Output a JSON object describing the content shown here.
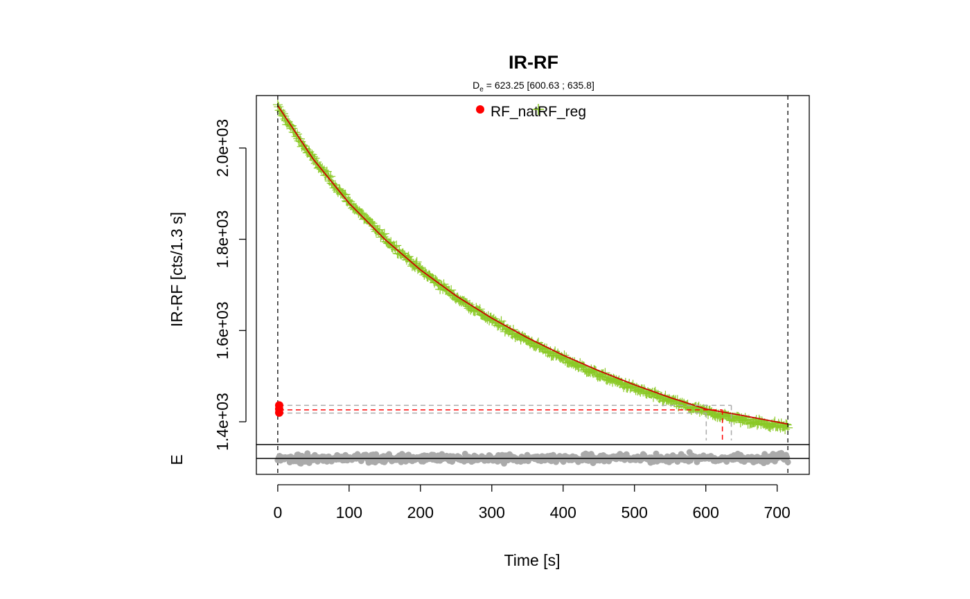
{
  "chart_data": {
    "type": "scatter",
    "title": "IR-RF",
    "subtitle": {
      "symbol": "D",
      "subscript": "e",
      "text": " = 623.25 [600.63 ; 635.8]"
    },
    "xlabel": "Time [s]",
    "ylabel": "IR-RF [cts/1.3 s]",
    "residual_ylabel": "E",
    "xlim": [
      -30,
      745
    ],
    "ylim": [
      1350,
      2115
    ],
    "x_ticks": [
      0,
      100,
      200,
      300,
      400,
      500,
      600,
      700
    ],
    "x_tick_labels": [
      "0",
      "100",
      "200",
      "300",
      "400",
      "500",
      "600",
      "700"
    ],
    "y_ticks": [
      1400,
      1600,
      1800,
      2000
    ],
    "y_tick_labels": [
      "1.4e+03",
      "1.6e+03",
      "1.8e+03",
      "2.0e+03"
    ],
    "legend": {
      "position": "top-center",
      "entries": [
        {
          "label": "RF_nat",
          "marker": "filled-circle",
          "color": "#ff0000"
        },
        {
          "label": "RF_reg",
          "marker": "plus",
          "color": "#8ac926"
        }
      ]
    },
    "series": [
      {
        "name": "RF_reg",
        "marker": "plus",
        "color": "#8ac926",
        "points": [
          [
            0,
            2090
          ],
          [
            25,
            2030
          ],
          [
            50,
            1975
          ],
          [
            75,
            1928
          ],
          [
            100,
            1882
          ],
          [
            125,
            1842
          ],
          [
            150,
            1802
          ],
          [
            175,
            1768
          ],
          [
            200,
            1733
          ],
          [
            225,
            1703
          ],
          [
            250,
            1673
          ],
          [
            275,
            1648
          ],
          [
            300,
            1622
          ],
          [
            325,
            1600
          ],
          [
            350,
            1578
          ],
          [
            375,
            1558
          ],
          [
            400,
            1538
          ],
          [
            425,
            1521
          ],
          [
            450,
            1503
          ],
          [
            475,
            1488
          ],
          [
            500,
            1473
          ],
          [
            525,
            1459
          ],
          [
            550,
            1446
          ],
          [
            575,
            1433
          ],
          [
            600,
            1422
          ],
          [
            625,
            1413
          ],
          [
            650,
            1405
          ],
          [
            675,
            1398
          ],
          [
            700,
            1392
          ],
          [
            715,
            1389
          ]
        ]
      },
      {
        "name": "RF_nat",
        "marker": "filled-circle",
        "color": "#ff0000",
        "points": [
          [
            2,
            1428
          ],
          [
            2,
            1436
          ],
          [
            2,
            1420
          ]
        ]
      }
    ],
    "fit": {
      "color": "#cc0000",
      "points": [
        [
          0,
          2093
        ],
        [
          50,
          1975
        ],
        [
          100,
          1879
        ],
        [
          150,
          1800
        ],
        [
          200,
          1733
        ],
        [
          250,
          1676
        ],
        [
          300,
          1627
        ],
        [
          350,
          1584
        ],
        [
          400,
          1546
        ],
        [
          450,
          1512
        ],
        [
          500,
          1481
        ],
        [
          550,
          1453
        ],
        [
          600,
          1428
        ],
        [
          650,
          1414
        ],
        [
          715,
          1395
        ]
      ]
    },
    "vertical_reference_lines": [
      0,
      715
    ],
    "de": {
      "value": 623.25,
      "lower": 600.63,
      "upper": 635.8,
      "y_value": 1426,
      "y_lower": 1419,
      "y_upper": 1436
    },
    "residuals": {
      "color": "#aaaaaa",
      "x_range": [
        0,
        715
      ],
      "spread": "approximately symmetric noise around zero"
    },
    "colors": {
      "reg": "#8ac926",
      "nat": "#ff0000",
      "fit": "#cc0000",
      "reference": "#000000",
      "interval": "#aaaaaa",
      "residual": "#aaaaaa"
    }
  }
}
